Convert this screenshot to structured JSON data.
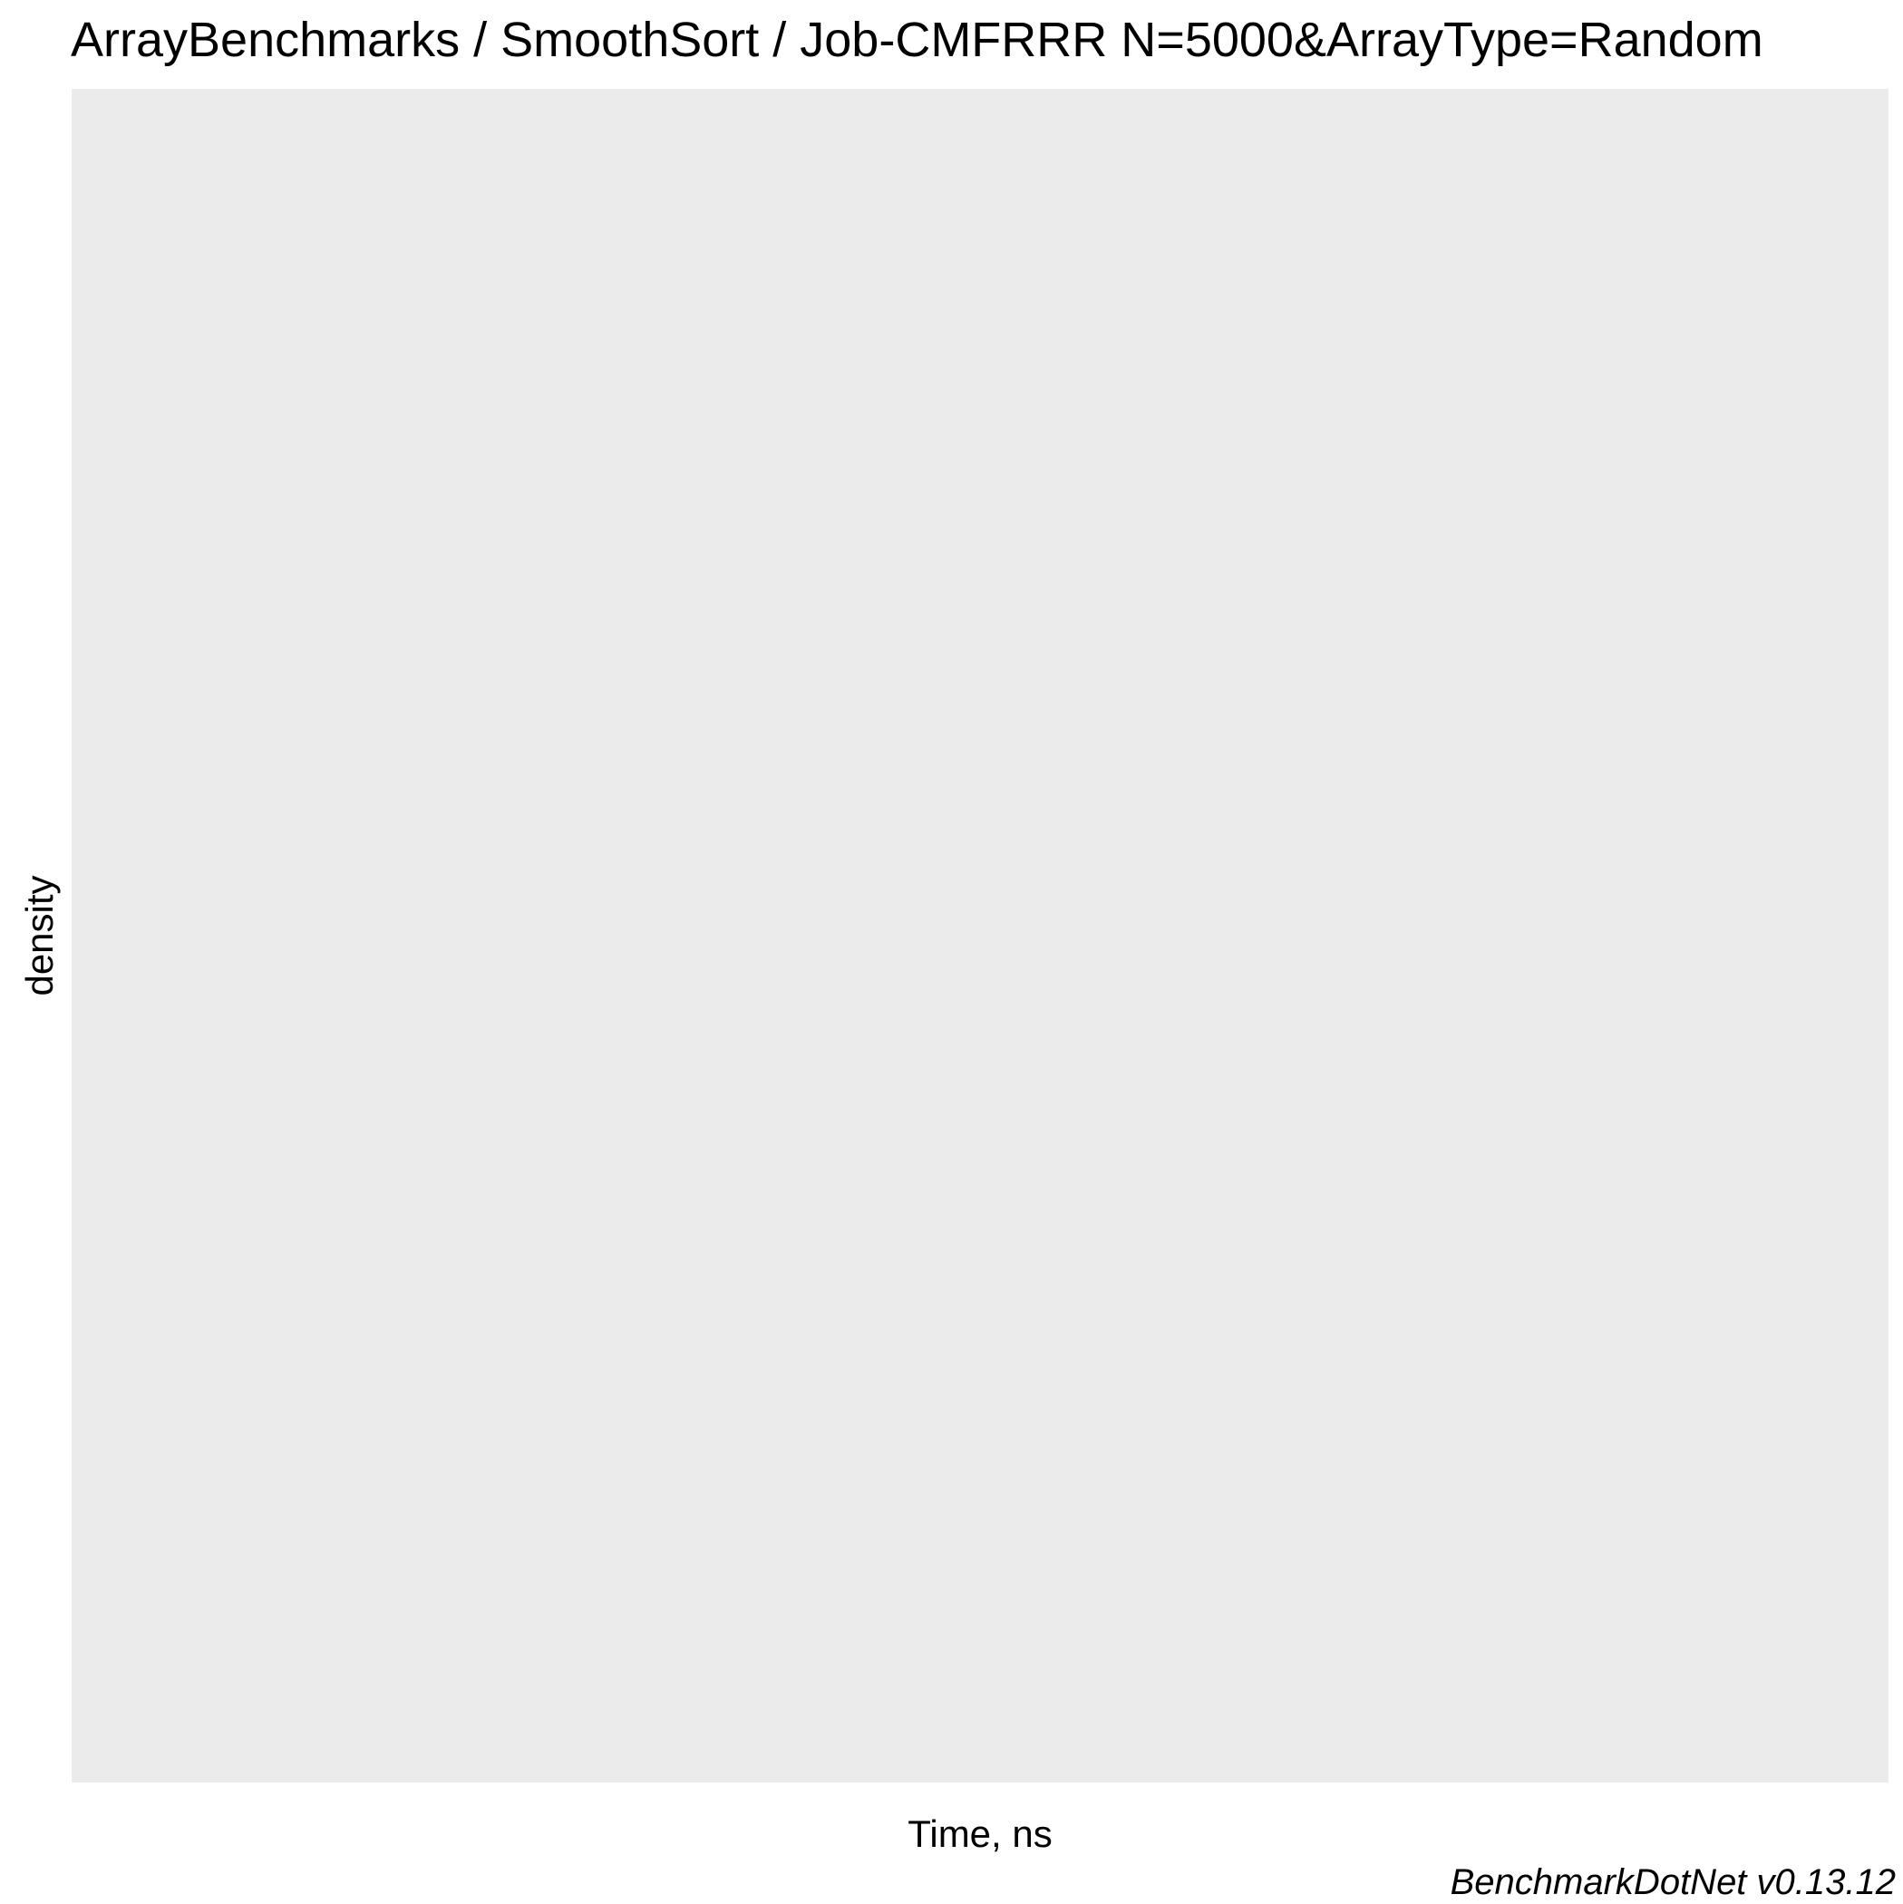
{
  "chart_data": {
    "type": "area",
    "title": "ArrayBenchmarks / SmoothSort / Job-CMFRRR N=5000&ArrayType=Random",
    "xlabel": "Time, ns",
    "ylabel": "density",
    "caption": "BenchmarkDotNet v0.13.12",
    "series": [],
    "grid": false,
    "legend": "none",
    "colors": {
      "panel_background": "#EBEBEB",
      "page_background": "#FFFFFF",
      "text": "#000000"
    }
  }
}
